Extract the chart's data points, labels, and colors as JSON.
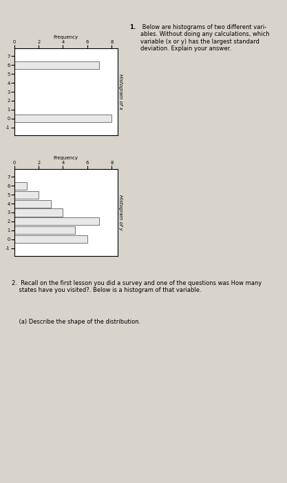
{
  "hist_x_title": "Histogram of x",
  "hist_y_title": "Histogram of y",
  "freq_label": "Frequency",
  "x_categories": [
    -1,
    0,
    1,
    2,
    3,
    4,
    5,
    6,
    7
  ],
  "x_freqs": [
    0,
    8,
    0,
    0,
    0,
    0,
    0,
    7,
    0
  ],
  "y_categories": [
    -1,
    0,
    1,
    2,
    3,
    4,
    5,
    6,
    7
  ],
  "y_freqs": [
    0,
    6,
    5,
    7,
    4,
    3,
    2,
    1,
    0
  ],
  "freq_ticks": [
    0,
    2,
    4,
    6,
    8
  ],
  "freq_xlim": [
    0,
    8.5
  ],
  "bar_color": "#e8e8e8",
  "bar_edge": "#444444",
  "page_bg": "#d8d4cc",
  "q1_number": "1.",
  "q1_text": " Below are histograms of two different vari-\nables. Without doing any calculations, which\nvariable (x or y) has the largest standard\ndeviation. Explain your answer.",
  "q2_text": "2.  Recall on the first lesson you did a survey and one of the questions was How many\n    states have you visited?. Below is a histogram of that variable.",
  "q2a_text": "    (a) Describe the shape of the distribution.",
  "title_fontsize": 5.5,
  "label_fontsize": 5.0,
  "tick_fontsize": 4.8,
  "text_fontsize": 6.0,
  "hist_label_fontsize": 5.0
}
